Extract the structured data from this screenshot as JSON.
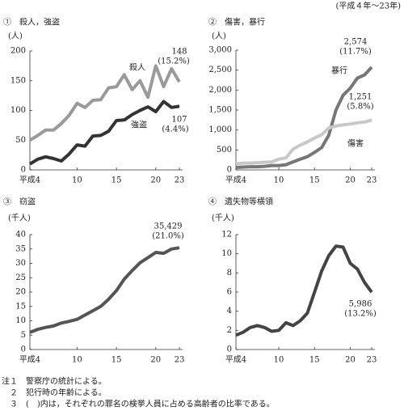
{
  "header": "(平成４年～23年)",
  "chart_data": [
    {
      "type": "line",
      "title": "①　殺人，強盗",
      "y_label": "(人)",
      "x": [
        4,
        5,
        6,
        7,
        8,
        9,
        10,
        11,
        12,
        13,
        14,
        15,
        16,
        17,
        18,
        19,
        20,
        21,
        22,
        23
      ],
      "xlim": [
        4,
        23
      ],
      "xticks": [
        {
          "value": 4,
          "label": "平成4"
        },
        10,
        15,
        20,
        23
      ],
      "ylim": [
        0,
        200
      ],
      "yticks": [
        0,
        50,
        100,
        150,
        200
      ],
      "series": [
        {
          "name": "殺人",
          "color": "#9a9a9a",
          "values": [
            50,
            58,
            67,
            67,
            78,
            92,
            112,
            105,
            117,
            118,
            138,
            140,
            160,
            135,
            150,
            122,
            175,
            140,
            170,
            148
          ]
        },
        {
          "name": "強盗",
          "color": "#333333",
          "values": [
            10,
            18,
            22,
            19,
            15,
            27,
            42,
            40,
            57,
            58,
            65,
            83,
            84,
            93,
            100,
            106,
            98,
            115,
            105,
            107
          ]
        }
      ],
      "annotations": [
        "148",
        "(15.2%)",
        "107",
        "(4.4%)"
      ]
    },
    {
      "type": "line",
      "title": "②　傷害，暴行",
      "y_label": "(人)",
      "x": [
        4,
        5,
        6,
        7,
        8,
        9,
        10,
        11,
        12,
        13,
        14,
        15,
        16,
        17,
        18,
        19,
        20,
        21,
        22,
        23
      ],
      "xlim": [
        4,
        23
      ],
      "xticks": [
        {
          "value": 4,
          "label": "平成4"
        },
        10,
        15,
        20,
        23
      ],
      "ylim": [
        0,
        3000
      ],
      "yticks": [
        0,
        500,
        {
          "value": 1000,
          "label": "1,000"
        },
        {
          "value": 1500,
          "label": "1,500"
        },
        {
          "value": 2000,
          "label": "2,000"
        },
        {
          "value": 2500,
          "label": "2,500"
        },
        {
          "value": 3000,
          "label": "3,000"
        }
      ],
      "series": [
        {
          "name": "暴行",
          "color": "#777777",
          "values": [
            60,
            70,
            80,
            80,
            90,
            110,
            110,
            130,
            200,
            270,
            330,
            440,
            560,
            870,
            1500,
            1870,
            2050,
            2300,
            2380,
            2574
          ]
        },
        {
          "name": "傷害",
          "color": "#c8c8c8",
          "values": [
            150,
            170,
            170,
            180,
            190,
            200,
            270,
            300,
            520,
            620,
            700,
            800,
            880,
            1050,
            1100,
            1130,
            1150,
            1180,
            1200,
            1251
          ]
        }
      ],
      "annotations": [
        "2,574",
        "(11.7%)",
        "1,251",
        "(5.8%)"
      ]
    },
    {
      "type": "line",
      "title": "③　窃盗",
      "y_label": "(千人)",
      "x": [
        4,
        5,
        6,
        7,
        8,
        9,
        10,
        11,
        12,
        13,
        14,
        15,
        16,
        17,
        18,
        19,
        20,
        21,
        22,
        23
      ],
      "xlim": [
        4,
        23
      ],
      "xticks": [
        {
          "value": 4,
          "label": "平成4"
        },
        10,
        15,
        20,
        23
      ],
      "ylim": [
        0,
        40
      ],
      "yticks": [
        0,
        5,
        10,
        15,
        20,
        25,
        30,
        35,
        40
      ],
      "color": "#555555",
      "values": [
        6,
        7,
        7.7,
        8.2,
        9.2,
        9.8,
        10.5,
        12,
        13.5,
        15,
        17.5,
        20.5,
        24.5,
        27.5,
        30.2,
        32,
        33.8,
        33.5,
        35,
        35.429
      ],
      "annotations": [
        "35,429",
        "(21.0%)"
      ]
    },
    {
      "type": "line",
      "title": "④　遺失物等横領",
      "y_label": "(千人)",
      "x": [
        4,
        5,
        6,
        7,
        8,
        9,
        10,
        11,
        12,
        13,
        14,
        15,
        16,
        17,
        18,
        19,
        20,
        21,
        22,
        23
      ],
      "xlim": [
        4,
        23
      ],
      "xticks": [
        {
          "value": 4,
          "label": "平成4"
        },
        10,
        15,
        20,
        23
      ],
      "ylim": [
        0,
        12
      ],
      "yticks": [
        0,
        2,
        4,
        6,
        8,
        10,
        12
      ],
      "color": "#444444",
      "values": [
        1.5,
        1.8,
        2.3,
        2.5,
        2.3,
        1.9,
        2.0,
        2.8,
        2.5,
        3.0,
        3.8,
        6.0,
        8.2,
        9.8,
        10.8,
        10.7,
        9.0,
        8.4,
        7.0,
        5.986
      ],
      "annotations": [
        "5,986",
        "(13.2%)"
      ]
    }
  ],
  "notes": [
    "注１　警察庁の統計による。",
    "　２　犯行時の年齢による。",
    "　３　(　)内は，それぞれの罪名の検挙人員に占める高齢者の比率である。"
  ]
}
